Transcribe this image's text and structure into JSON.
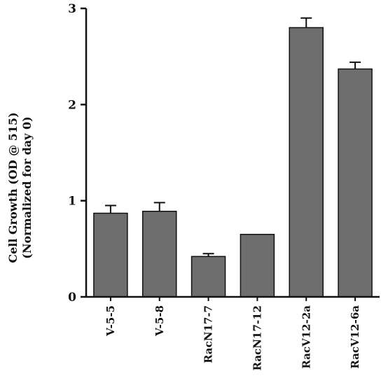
{
  "chart_data": {
    "type": "bar",
    "categories": [
      "V-5-5",
      "V-5-8",
      "RacN17-7",
      "RacN17-12",
      "RacV12-2a",
      "RacV12-6a"
    ],
    "values": [
      0.87,
      0.89,
      0.42,
      0.65,
      2.8,
      2.37
    ],
    "errors": [
      0.08,
      0.09,
      0.03,
      0.0,
      0.1,
      0.07
    ],
    "ylabel_line1": "Cell Growth (OD @ 515)",
    "ylabel_line2": "(Normalized for day 0)",
    "ylim": [
      0,
      3
    ],
    "yticks": [
      "0",
      "1",
      "2",
      "3"
    ],
    "grid": false,
    "bar_color": "#6e6e6e",
    "axis_color": "#111111"
  }
}
